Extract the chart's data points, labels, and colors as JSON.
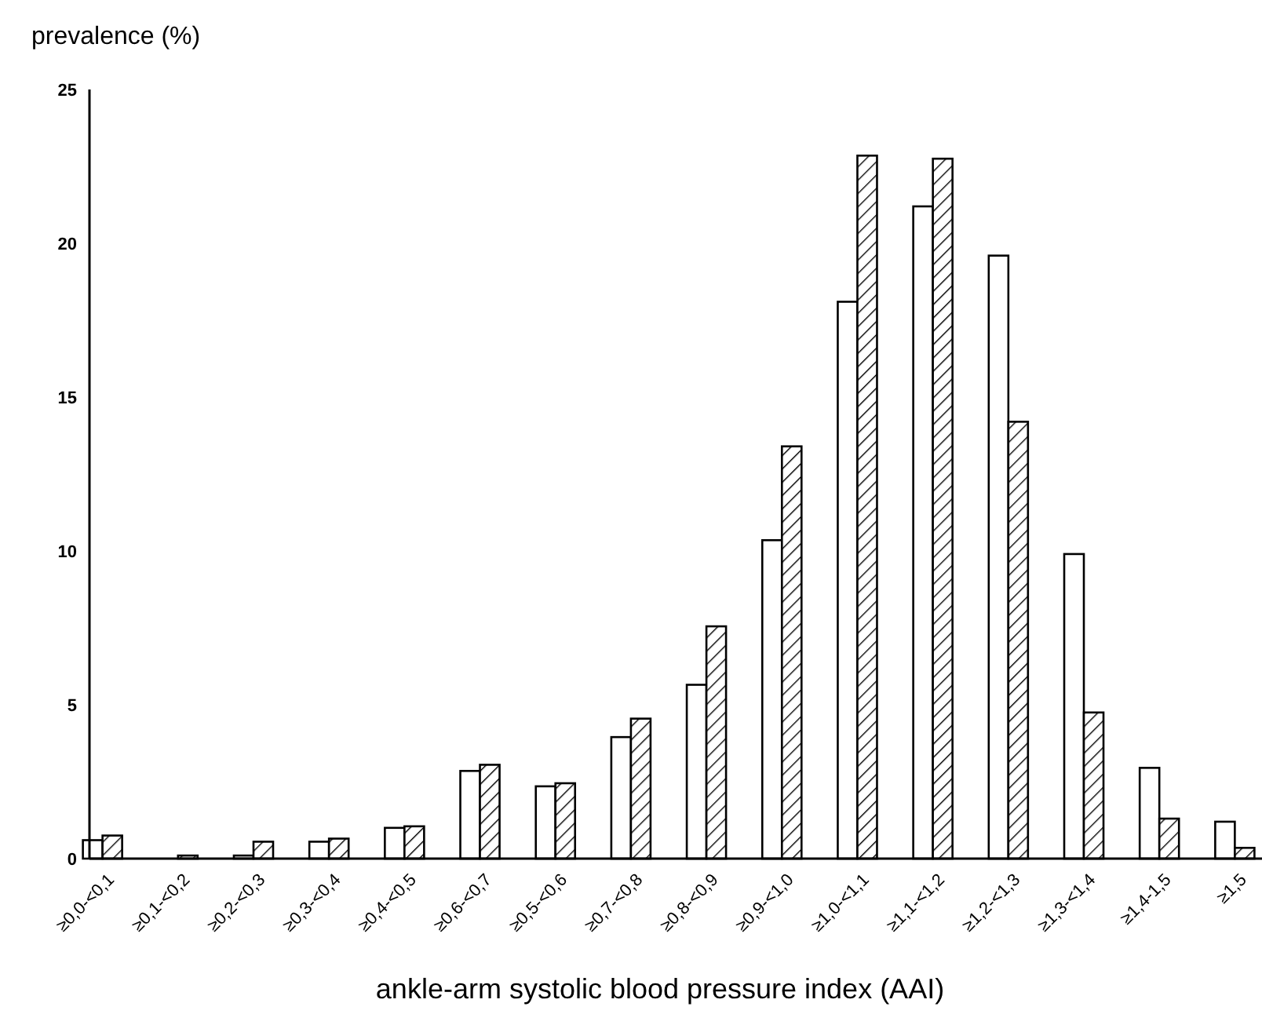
{
  "chart_data": {
    "type": "bar",
    "ylabel": "prevalence (%)",
    "xlabel": "ankle-arm systolic blood pressure index (AAI)",
    "categories": [
      "≥0,0-<0,1",
      "≥0,1-<0,2",
      "≥0,2-<0,3",
      "≥0,3-<0,4",
      "≥0,4-<0,5",
      "≥0,6-<0,7",
      "≥0,5-<0,6",
      "≥0,7-<0,8",
      "≥0,8-<0,9",
      "≥0,9-<1,0",
      "≥1,0-<1,1",
      "≥1,1-<1,2",
      "≥1,2-<1,3",
      "≥1,3-<1,4",
      "≥1,4-1,5",
      "≥1,5"
    ],
    "series": [
      {
        "color": "#ffffff",
        "values": [
          0.6,
          0,
          0.1,
          0.55,
          1.0,
          2.85,
          2.35,
          3.95,
          5.65,
          10.35,
          18.1,
          21.2,
          19.6,
          9.9,
          2.95,
          1.2
        ]
      },
      {
        "color": "#000000",
        "values": [
          0.75,
          0.1,
          0.55,
          0.65,
          1.05,
          3.05,
          2.45,
          4.55,
          7.55,
          13.4,
          22.85,
          22.75,
          14.2,
          4.75,
          1.3,
          0.35
        ]
      }
    ],
    "ylim": [
      0,
      25
    ],
    "yticks": [
      0,
      5,
      10,
      15,
      20,
      25
    ],
    "grid": false
  }
}
